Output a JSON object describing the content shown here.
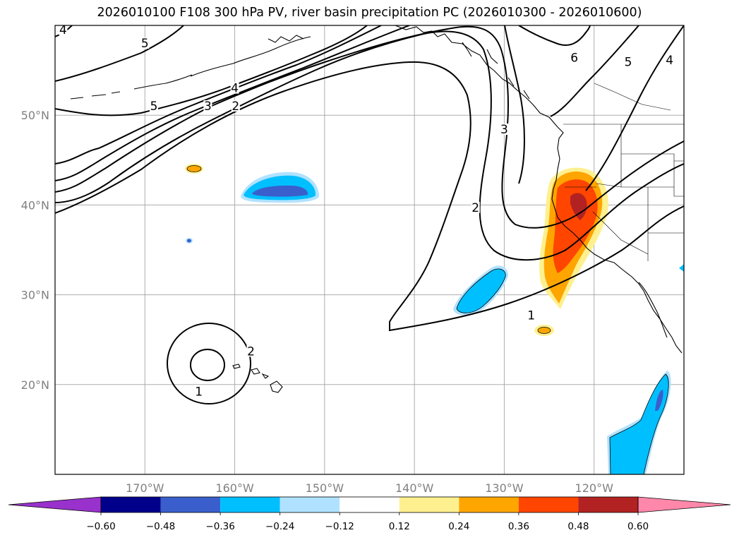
{
  "title": "2026010100 F108 300 hPa PV, river basin precipitation PC (2026010300 - 2026010600)",
  "chart_data": {
    "type": "heatmap",
    "title": "2026010100 F108 300 hPa PV, river basin precipitation PC (2026010300 - 2026010600)",
    "projection": "PlateCarree",
    "extent": {
      "lon": [
        -180,
        -110
      ],
      "lat": [
        10,
        60
      ]
    },
    "grid": true,
    "lat_ticks": [
      {
        "value": 50,
        "label": "50°N"
      },
      {
        "value": 40,
        "label": "40°N"
      },
      {
        "value": 30,
        "label": "30°N"
      },
      {
        "value": 20,
        "label": "20°N"
      }
    ],
    "lon_ticks": [
      {
        "value": -170,
        "label": "170°W"
      },
      {
        "value": -160,
        "label": "160°W"
      },
      {
        "value": -150,
        "label": "150°W"
      },
      {
        "value": -140,
        "label": "140°W"
      },
      {
        "value": -130,
        "label": "130°W"
      },
      {
        "value": -120,
        "label": "120°W"
      }
    ],
    "colorbar": {
      "extend": "both",
      "levels": [
        -0.6,
        -0.48,
        -0.36,
        -0.24,
        -0.12,
        0.12,
        0.24,
        0.36,
        0.48,
        0.6
      ],
      "tick_labels": [
        "−0.60",
        "−0.48",
        "−0.36",
        "−0.24",
        "−0.12",
        "0.12",
        "0.24",
        "0.36",
        "0.48",
        "0.60"
      ],
      "colors": [
        "#9932cc",
        "#00008b",
        "#3a5fcd",
        "#00bfff",
        "#b0e2ff",
        "#ffffff",
        "#fff08f",
        "#ffa500",
        "#ff4500",
        "#b22222",
        "#ff88aa"
      ]
    },
    "pv_contour_levels": [
      1,
      2,
      3,
      4,
      5,
      6
    ],
    "contour_labels": [
      {
        "text": "1",
        "lon": -164.0,
        "lat": 19.0
      },
      {
        "text": "2",
        "lon": -158.2,
        "lat": 23.5
      },
      {
        "text": "1",
        "lon": -127.0,
        "lat": 27.5
      },
      {
        "text": "2",
        "lon": -133.2,
        "lat": 39.5
      },
      {
        "text": "3",
        "lon": -130.0,
        "lat": 48.2
      },
      {
        "text": "2",
        "lon": -159.9,
        "lat": 50.8
      },
      {
        "text": "3",
        "lon": -163.0,
        "lat": 50.8
      },
      {
        "text": "4",
        "lon": -160.0,
        "lat": 52.8
      },
      {
        "text": "5",
        "lon": -169.0,
        "lat": 50.8
      },
      {
        "text": "5",
        "lon": -170.0,
        "lat": 57.8
      },
      {
        "text": "4",
        "lon": -179.1,
        "lat": 59.3
      },
      {
        "text": "6",
        "lon": -122.2,
        "lat": 56.2
      },
      {
        "text": "5",
        "lon": -116.2,
        "lat": 55.7
      },
      {
        "text": "4",
        "lon": -111.6,
        "lat": 55.9
      }
    ]
  }
}
